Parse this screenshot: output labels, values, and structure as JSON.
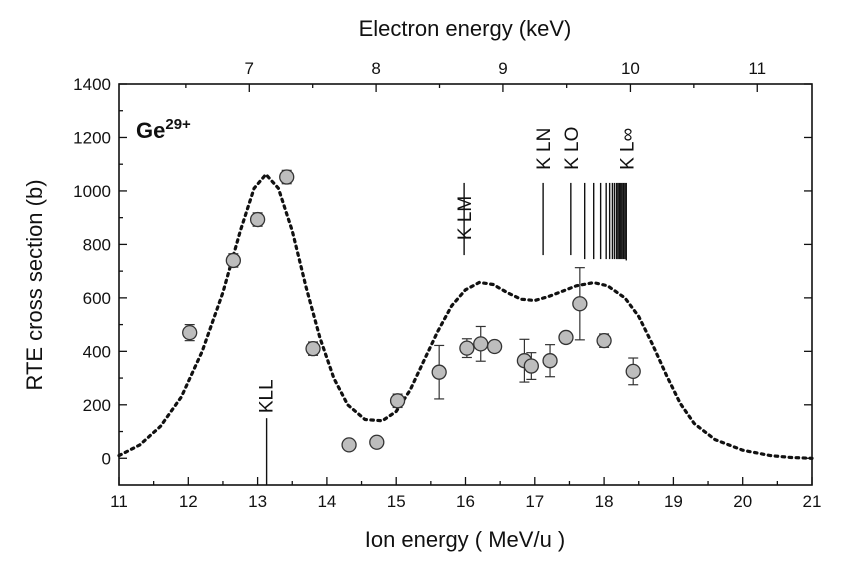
{
  "chart_data": {
    "type": "scatter",
    "xlabel": "Ion energy ( MeV/u )",
    "ylabel": "RTE cross section (b)",
    "top_xlabel": "Electron energy  (keV)",
    "ion_label": {
      "symbol": "Ge",
      "charge": "29+"
    },
    "xlim": [
      11,
      21
    ],
    "ylim": [
      -100,
      1400
    ],
    "x_ticks": [
      11,
      12,
      13,
      14,
      15,
      16,
      17,
      18,
      19,
      20,
      21
    ],
    "y_ticks": [
      0,
      200,
      400,
      600,
      800,
      1000,
      1200,
      1400
    ],
    "top_ticks": [
      {
        "label": "7",
        "ion_energy": 12.88
      },
      {
        "label": "8",
        "ion_energy": 14.71
      },
      {
        "label": "9",
        "ion_energy": 16.54
      },
      {
        "label": "10",
        "ion_energy": 18.38
      },
      {
        "label": "11",
        "ion_energy": 20.21
      }
    ],
    "grid": false,
    "series": [
      {
        "type": "scatter",
        "points": [
          {
            "x": 12.02,
            "y": 470,
            "err": 30
          },
          {
            "x": 12.65,
            "y": 740,
            "err": 25
          },
          {
            "x": 13.0,
            "y": 893,
            "err": 25
          },
          {
            "x": 13.42,
            "y": 1052,
            "err": 25
          },
          {
            "x": 13.8,
            "y": 410,
            "err": 25
          },
          {
            "x": 14.32,
            "y": 50,
            "err": 0
          },
          {
            "x": 14.72,
            "y": 60,
            "err": 0
          },
          {
            "x": 15.02,
            "y": 215,
            "err": 25
          },
          {
            "x": 15.62,
            "y": 322,
            "err": 100
          },
          {
            "x": 16.02,
            "y": 412,
            "err": 35
          },
          {
            "x": 16.22,
            "y": 428,
            "err": 65
          },
          {
            "x": 16.42,
            "y": 418,
            "err": 20
          },
          {
            "x": 16.85,
            "y": 365,
            "err": 80
          },
          {
            "x": 16.95,
            "y": 345,
            "err": 50
          },
          {
            "x": 17.22,
            "y": 365,
            "err": 60
          },
          {
            "x": 17.45,
            "y": 452,
            "err": 20
          },
          {
            "x": 17.65,
            "y": 578,
            "err": 135
          },
          {
            "x": 18.0,
            "y": 440,
            "err": 25
          },
          {
            "x": 18.42,
            "y": 325,
            "err": 50
          }
        ]
      },
      {
        "type": "line",
        "style": "dotted",
        "points": [
          [
            11.0,
            10
          ],
          [
            11.3,
            50
          ],
          [
            11.6,
            120
          ],
          [
            11.9,
            230
          ],
          [
            12.2,
            400
          ],
          [
            12.5,
            620
          ],
          [
            12.75,
            850
          ],
          [
            12.95,
            1010
          ],
          [
            13.12,
            1062
          ],
          [
            13.3,
            1010
          ],
          [
            13.5,
            850
          ],
          [
            13.7,
            640
          ],
          [
            13.9,
            450
          ],
          [
            14.1,
            300
          ],
          [
            14.3,
            200
          ],
          [
            14.55,
            145
          ],
          [
            14.8,
            140
          ],
          [
            15.0,
            175
          ],
          [
            15.2,
            255
          ],
          [
            15.4,
            365
          ],
          [
            15.6,
            475
          ],
          [
            15.8,
            570
          ],
          [
            16.0,
            630
          ],
          [
            16.2,
            658
          ],
          [
            16.4,
            650
          ],
          [
            16.6,
            620
          ],
          [
            16.8,
            595
          ],
          [
            17.0,
            590
          ],
          [
            17.2,
            605
          ],
          [
            17.4,
            625
          ],
          [
            17.6,
            645
          ],
          [
            17.85,
            657
          ],
          [
            18.05,
            645
          ],
          [
            18.3,
            600
          ],
          [
            18.5,
            530
          ],
          [
            18.7,
            425
          ],
          [
            18.9,
            310
          ],
          [
            19.1,
            205
          ],
          [
            19.3,
            130
          ],
          [
            19.6,
            70
          ],
          [
            20.0,
            30
          ],
          [
            20.4,
            10
          ],
          [
            20.7,
            3
          ],
          [
            21.0,
            0
          ]
        ]
      }
    ],
    "annotations": [
      {
        "text": "KLL",
        "x": 13.13,
        "y_top": 150,
        "y_bottom": -100
      },
      {
        "text": "K LM",
        "x": 15.98,
        "y_top": 760,
        "y_bottom": 760
      },
      {
        "text": "K LN",
        "x": 17.12,
        "y_top": 1030,
        "y_bottom": 760
      },
      {
        "text": "K LO",
        "x": 17.52,
        "y_top": 1030,
        "y_bottom": 760
      },
      {
        "text": "K L",
        "suffix": "∞",
        "x": 18.32,
        "y_top": 1030,
        "y_bottom": 740
      }
    ],
    "series_limit_lines": [
      17.72,
      17.85,
      17.95,
      18.03,
      18.08,
      18.12,
      18.15,
      18.18,
      18.2,
      18.22,
      18.24,
      18.26,
      18.28,
      18.3
    ]
  }
}
